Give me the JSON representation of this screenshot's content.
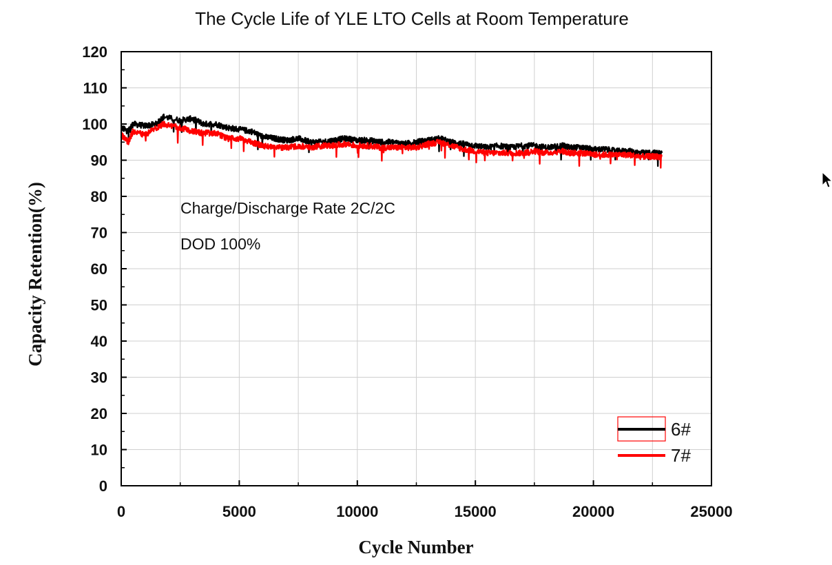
{
  "chart_data": {
    "type": "line",
    "title": "The Cycle Life of YLE LTO Cells at Room Temperature",
    "xlabel": "Cycle Number",
    "ylabel": "Capacity Retention(%)",
    "xlim": [
      0,
      25000
    ],
    "ylim": [
      0,
      120
    ],
    "x_ticks": [
      "0",
      "5000",
      "10000",
      "15000",
      "20000",
      "25000"
    ],
    "y_ticks": [
      "0",
      "10",
      "20",
      "30",
      "40",
      "50",
      "60",
      "70",
      "80",
      "90",
      "100",
      "110",
      "120"
    ],
    "grid": true,
    "legend_position": "bottom-right",
    "annotations": [
      "Charge/Discharge Rate 2C/2C",
      "DOD 100%"
    ],
    "series": [
      {
        "name": "6#",
        "color": "#000000",
        "x": [
          0,
          300,
          500,
          1000,
          1500,
          1800,
          2500,
          3000,
          3500,
          4000,
          4500,
          5000,
          5500,
          6000,
          6500,
          7000,
          7500,
          8000,
          8500,
          9000,
          9500,
          10000,
          10500,
          11000,
          11500,
          12000,
          12500,
          13000,
          13500,
          14000,
          14500,
          15000,
          15500,
          16000,
          16500,
          17000,
          17500,
          18000,
          18700,
          19000,
          19500,
          20000,
          20500,
          21000,
          21500,
          22000,
          22500,
          22900
        ],
        "y": [
          99,
          98,
          100,
          99.5,
          100,
          102,
          101,
          101.5,
          100,
          100,
          99,
          98.5,
          98,
          96.5,
          96,
          95.5,
          96,
          95,
          95,
          95.5,
          96,
          95.5,
          95.5,
          95,
          95,
          94.5,
          95,
          95.5,
          96,
          95,
          94.5,
          94,
          93.5,
          94,
          93.5,
          94,
          94,
          93.5,
          94,
          93.5,
          93.5,
          93,
          93,
          92.5,
          92.5,
          92,
          92,
          92
        ]
      },
      {
        "name": "7#",
        "color": "#ff0000",
        "x": [
          0,
          300,
          500,
          1000,
          1500,
          1800,
          2500,
          3000,
          3500,
          4000,
          4500,
          5000,
          5500,
          6000,
          6500,
          7000,
          7500,
          8000,
          8500,
          9000,
          9500,
          10000,
          10500,
          11000,
          11500,
          12000,
          12500,
          13000,
          13500,
          14000,
          14500,
          15000,
          15500,
          16000,
          16500,
          17000,
          17500,
          18000,
          18700,
          19000,
          19500,
          20000,
          20500,
          21000,
          21500,
          22000,
          22500,
          22900
        ],
        "y": [
          97,
          95,
          98,
          97,
          99,
          100,
          99,
          98,
          97.5,
          97.5,
          96,
          96,
          95,
          94,
          93.5,
          93.5,
          94,
          93.5,
          94,
          94,
          94.5,
          94,
          94,
          93.5,
          93.5,
          93.5,
          93.5,
          94.5,
          95,
          94,
          93,
          92.5,
          92,
          92,
          92,
          92,
          92.5,
          92,
          92.5,
          92,
          92,
          91.5,
          91.5,
          91.5,
          91.5,
          91,
          91,
          91
        ]
      }
    ]
  }
}
